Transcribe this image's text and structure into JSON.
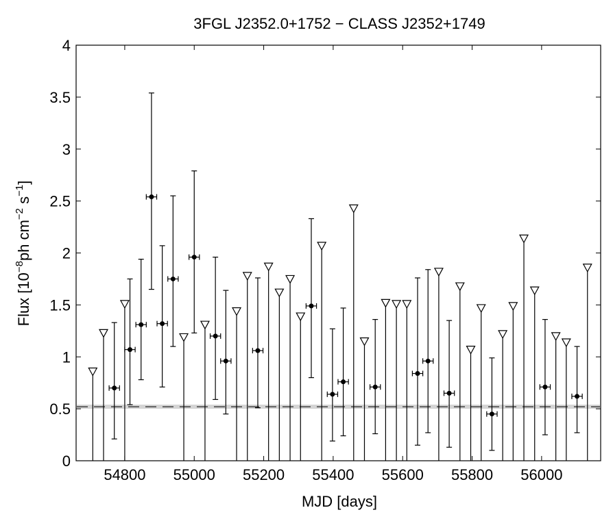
{
  "chart_data": {
    "type": "scatter",
    "title": "3FGL J2352.0+1752 − CLASS J2352+1749",
    "xlabel": "MJD [days]",
    "ylabel_prefix": "Flux [10",
    "ylabel_exp1": "−8",
    "ylabel_mid": "ph cm",
    "ylabel_exp2": "−2",
    "ylabel_s": " s",
    "ylabel_exp3": "−1",
    "ylabel_suffix": "]",
    "xlim": [
      54660,
      56170
    ],
    "ylim": [
      0,
      4
    ],
    "x_ticks": [
      54800,
      55000,
      55200,
      55400,
      55600,
      55800,
      56000
    ],
    "y_ticks": [
      0,
      0.5,
      1,
      1.5,
      2,
      2.5,
      3,
      3.5,
      4
    ],
    "x_tick_labels": [
      "54800",
      "55000",
      "55200",
      "55400",
      "55600",
      "55800",
      "56000"
    ],
    "y_tick_labels": [
      "0",
      "0.5",
      "1",
      "1.5",
      "2",
      "2.5",
      "3",
      "3.5",
      "4"
    ],
    "grid": false,
    "reference_line": {
      "y": 0.52,
      "style": "dashed",
      "band": [
        0.5,
        0.54
      ]
    },
    "series": [
      {
        "kind": "detections",
        "x_err": 15,
        "points": [
          {
            "x": 54770,
            "y": 0.7,
            "ylo": 0.21,
            "yhi": 1.33
          },
          {
            "x": 54815,
            "y": 1.07,
            "ylo": 0.54,
            "yhi": 1.75
          },
          {
            "x": 54847,
            "y": 1.31,
            "ylo": 0.78,
            "yhi": 1.94
          },
          {
            "x": 54877,
            "y": 2.54,
            "ylo": 1.65,
            "yhi": 3.54
          },
          {
            "x": 54908,
            "y": 1.32,
            "ylo": 0.71,
            "yhi": 2.07
          },
          {
            "x": 54939,
            "y": 1.75,
            "ylo": 1.1,
            "yhi": 2.55
          },
          {
            "x": 55000,
            "y": 1.96,
            "ylo": 1.23,
            "yhi": 2.79
          },
          {
            "x": 55061,
            "y": 1.2,
            "ylo": 0.59,
            "yhi": 1.96
          },
          {
            "x": 55091,
            "y": 0.96,
            "ylo": 0.45,
            "yhi": 1.64
          },
          {
            "x": 55183,
            "y": 1.06,
            "ylo": 0.51,
            "yhi": 1.76
          },
          {
            "x": 55337,
            "y": 1.49,
            "ylo": 0.8,
            "yhi": 2.33
          },
          {
            "x": 55398,
            "y": 0.64,
            "ylo": 0.19,
            "yhi": 1.27
          },
          {
            "x": 55429,
            "y": 0.76,
            "ylo": 0.24,
            "yhi": 1.47
          },
          {
            "x": 55521,
            "y": 0.71,
            "ylo": 0.26,
            "yhi": 1.36
          },
          {
            "x": 55643,
            "y": 0.84,
            "ylo": 0.15,
            "yhi": 1.76
          },
          {
            "x": 55673,
            "y": 0.96,
            "ylo": 0.27,
            "yhi": 1.84
          },
          {
            "x": 55734,
            "y": 0.65,
            "ylo": 0.13,
            "yhi": 1.35
          },
          {
            "x": 55857,
            "y": 0.45,
            "ylo": 0.1,
            "yhi": 0.99
          },
          {
            "x": 56010,
            "y": 0.71,
            "ylo": 0.25,
            "yhi": 1.36
          },
          {
            "x": 56102,
            "y": 0.62,
            "ylo": 0.27,
            "yhi": 1.1
          }
        ]
      },
      {
        "kind": "upper_limits",
        "points": [
          {
            "x": 54708,
            "y": 0.86
          },
          {
            "x": 54739,
            "y": 1.23
          },
          {
            "x": 54800,
            "y": 1.51
          },
          {
            "x": 54970,
            "y": 1.19
          },
          {
            "x": 55031,
            "y": 1.31
          },
          {
            "x": 55122,
            "y": 1.44
          },
          {
            "x": 55153,
            "y": 1.78
          },
          {
            "x": 55214,
            "y": 1.87
          },
          {
            "x": 55245,
            "y": 1.62
          },
          {
            "x": 55276,
            "y": 1.75
          },
          {
            "x": 55306,
            "y": 1.39
          },
          {
            "x": 55367,
            "y": 2.07
          },
          {
            "x": 55459,
            "y": 2.43
          },
          {
            "x": 55490,
            "y": 1.15
          },
          {
            "x": 55551,
            "y": 1.52
          },
          {
            "x": 55582,
            "y": 1.51
          },
          {
            "x": 55612,
            "y": 1.51
          },
          {
            "x": 55704,
            "y": 1.82
          },
          {
            "x": 55765,
            "y": 1.68
          },
          {
            "x": 55796,
            "y": 1.07
          },
          {
            "x": 55826,
            "y": 1.47
          },
          {
            "x": 55888,
            "y": 1.22
          },
          {
            "x": 55918,
            "y": 1.49
          },
          {
            "x": 55949,
            "y": 2.14
          },
          {
            "x": 55980,
            "y": 1.64
          },
          {
            "x": 56041,
            "y": 1.2
          },
          {
            "x": 56071,
            "y": 1.14
          },
          {
            "x": 56132,
            "y": 1.86
          }
        ]
      }
    ]
  }
}
